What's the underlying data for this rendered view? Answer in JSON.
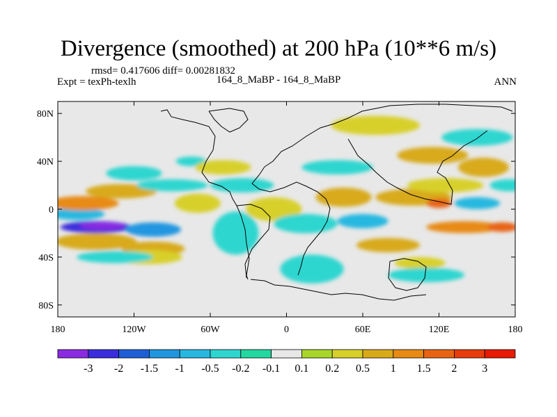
{
  "header": {
    "title": "Divergence (smoothed) at 200 hPa (10**6 m/s)",
    "stats": "rmsd= 0.417606 diff= 0.00281832",
    "expt": "Expt = texPh-texlh",
    "case": "164_8_MaBP - 164_8_MaBP",
    "season": "ANN"
  },
  "chart_data": {
    "type": "heatmap",
    "title": "Divergence (smoothed) at 200 hPa (10**6 m/s)",
    "projection": "cylindrical equidistant",
    "xlim": [
      -180,
      180
    ],
    "ylim": [
      -90,
      90
    ],
    "x_ticks": [
      {
        "value": -180,
        "label": "180"
      },
      {
        "value": -120,
        "label": "120W"
      },
      {
        "value": -60,
        "label": "60W"
      },
      {
        "value": 0,
        "label": "0"
      },
      {
        "value": 60,
        "label": "60E"
      },
      {
        "value": 120,
        "label": "120E"
      },
      {
        "value": 180,
        "label": "180"
      }
    ],
    "y_ticks": [
      {
        "value": 80,
        "label": "80N"
      },
      {
        "value": 40,
        "label": "40N"
      },
      {
        "value": 0,
        "label": "0"
      },
      {
        "value": -40,
        "label": "40S"
      },
      {
        "value": -80,
        "label": "80S"
      }
    ],
    "colorbar": {
      "colors": [
        "#8a2be2",
        "#3a2ddb",
        "#1e5fd8",
        "#2196e0",
        "#26b8e0",
        "#2fd6d0",
        "#22d8a0",
        "#e8e8e8",
        "#a8d62a",
        "#d8d02a",
        "#d8aa1a",
        "#e88a14",
        "#e86414",
        "#e83c0a",
        "#e81a00"
      ],
      "levels": [
        "-3",
        "-2",
        "-1.5",
        "-1",
        "-0.5",
        "-0.2",
        "-0.1",
        "0.1",
        "0.2",
        "0.5",
        "1",
        "1.5",
        "2",
        "3"
      ]
    },
    "regions": [
      {
        "lon": -150,
        "lat": -15,
        "rlon": 28,
        "rlat": 5,
        "level": 1
      },
      {
        "lon": -145,
        "lat": -14,
        "rlon": 18,
        "rlat": 3,
        "level": 0
      },
      {
        "lon": -105,
        "lat": -17,
        "rlon": 22,
        "rlat": 6,
        "level": 3
      },
      {
        "lon": -165,
        "lat": -4,
        "rlon": 22,
        "rlat": 5,
        "level": 4
      },
      {
        "lon": -150,
        "lat": -27,
        "rlon": 32,
        "rlat": 7,
        "level": 10
      },
      {
        "lon": -105,
        "lat": -33,
        "rlon": 25,
        "rlat": 6,
        "level": 10
      },
      {
        "lon": -160,
        "lat": 5,
        "rlon": 28,
        "rlat": 6,
        "level": 11
      },
      {
        "lon": -130,
        "lat": 15,
        "rlon": 28,
        "rlat": 6,
        "level": 10
      },
      {
        "lon": -110,
        "lat": -40,
        "rlon": 28,
        "rlat": 6,
        "level": 9
      },
      {
        "lon": -90,
        "lat": 20,
        "rlon": 28,
        "rlat": 5,
        "level": 5
      },
      {
        "lon": -75,
        "lat": 40,
        "rlon": 12,
        "rlat": 4,
        "level": 5
      },
      {
        "lon": -50,
        "lat": 35,
        "rlon": 22,
        "rlat": 6,
        "level": 9
      },
      {
        "lon": -35,
        "lat": 20,
        "rlon": 25,
        "rlat": 6,
        "level": 5
      },
      {
        "lon": -40,
        "lat": -20,
        "rlon": 18,
        "rlat": 18,
        "level": 5
      },
      {
        "lon": -70,
        "lat": 5,
        "rlon": 18,
        "rlat": 8,
        "level": 9
      },
      {
        "lon": -10,
        "lat": 0,
        "rlon": 22,
        "rlat": 10,
        "level": 9
      },
      {
        "lon": 15,
        "lat": -12,
        "rlon": 25,
        "rlat": 8,
        "level": 5
      },
      {
        "lon": 20,
        "lat": -50,
        "rlon": 25,
        "rlat": 12,
        "level": 5
      },
      {
        "lon": 45,
        "lat": 10,
        "rlon": 22,
        "rlat": 8,
        "level": 10
      },
      {
        "lon": 40,
        "lat": 35,
        "rlon": 28,
        "rlat": 6,
        "level": 5
      },
      {
        "lon": 100,
        "lat": 10,
        "rlon": 30,
        "rlat": 7,
        "level": 10
      },
      {
        "lon": 120,
        "lat": 5,
        "rlon": 10,
        "rlat": 4,
        "level": 12
      },
      {
        "lon": 125,
        "lat": 20,
        "rlon": 30,
        "rlat": 6,
        "level": 9
      },
      {
        "lon": 150,
        "lat": 60,
        "rlon": 28,
        "rlat": 7,
        "level": 5
      },
      {
        "lon": 115,
        "lat": 45,
        "rlon": 28,
        "rlat": 7,
        "level": 10
      },
      {
        "lon": 70,
        "lat": 70,
        "rlon": 35,
        "rlat": 8,
        "level": 9
      },
      {
        "lon": 155,
        "lat": 35,
        "rlon": 20,
        "rlat": 8,
        "level": 10
      },
      {
        "lon": 80,
        "lat": -30,
        "rlon": 25,
        "rlat": 6,
        "level": 10
      },
      {
        "lon": 105,
        "lat": -45,
        "rlon": 20,
        "rlat": 5,
        "level": 9
      },
      {
        "lon": 140,
        "lat": -15,
        "rlon": 30,
        "rlat": 5,
        "level": 11
      },
      {
        "lon": 170,
        "lat": -15,
        "rlon": 12,
        "rlat": 4,
        "level": 12
      },
      {
        "lon": 60,
        "lat": -10,
        "rlon": 20,
        "rlat": 6,
        "level": 4
      },
      {
        "lon": 150,
        "lat": 5,
        "rlon": 18,
        "rlat": 5,
        "level": 4
      },
      {
        "lon": 110,
        "lat": -55,
        "rlon": 30,
        "rlat": 6,
        "level": 5
      },
      {
        "lon": -120,
        "lat": 30,
        "rlon": 22,
        "rlat": 6,
        "level": 5
      },
      {
        "lon": -135,
        "lat": -40,
        "rlon": 30,
        "rlat": 5,
        "level": 5
      },
      {
        "lon": 175,
        "lat": 20,
        "rlon": 15,
        "rlat": 5,
        "level": 5
      }
    ]
  }
}
